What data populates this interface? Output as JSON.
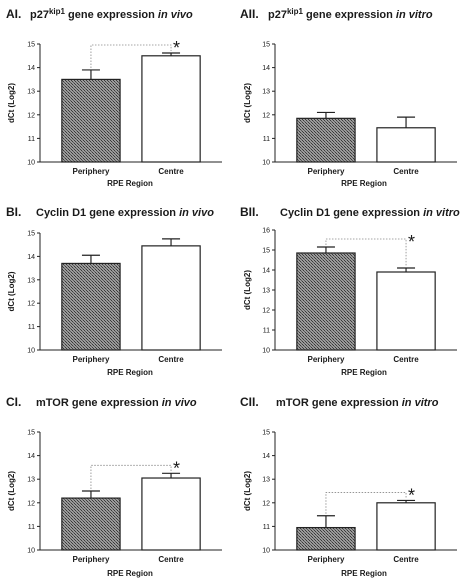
{
  "chart_data": [
    {
      "type": "bar",
      "panel": "AI.",
      "title": {
        "gene": "p27",
        "sup": "kip1",
        "middle": " gene expression ",
        "condition": "in vivo"
      },
      "ylabel": "dCt (Log2)",
      "xlabel": "RPE Region",
      "categories": [
        "Periphery",
        "Centre"
      ],
      "values": [
        13.5,
        14.5
      ],
      "errors": [
        0.4,
        0.12
      ],
      "ylim": [
        10,
        15
      ],
      "yticks": [
        "10",
        "11",
        "12",
        "13",
        "14",
        "15"
      ],
      "significance": "*"
    },
    {
      "type": "bar",
      "panel": "AII.",
      "title": {
        "gene": "p27",
        "sup": "kip1",
        "middle": " gene expression ",
        "condition": "in vitro"
      },
      "ylabel": "dCt (Log2)",
      "xlabel": "RPE Region",
      "categories": [
        "Periphery",
        "Centre"
      ],
      "values": [
        11.85,
        11.45
      ],
      "errors": [
        0.25,
        0.45
      ],
      "ylim": [
        10,
        15
      ],
      "yticks": [
        "10",
        "11",
        "12",
        "13",
        "14",
        "15"
      ],
      "significance": ""
    },
    {
      "type": "bar",
      "panel": "BI.",
      "title": {
        "gene": "Cyclin D1",
        "sup": "",
        "middle": " gene expression ",
        "condition": "in vivo"
      },
      "ylabel": "dCt (Log2)",
      "xlabel": "RPE Region",
      "categories": [
        "Periphery",
        "Centre"
      ],
      "values": [
        13.7,
        14.45
      ],
      "errors": [
        0.35,
        0.3
      ],
      "ylim": [
        10,
        15
      ],
      "yticks": [
        "10",
        "11",
        "12",
        "13",
        "14",
        "15"
      ],
      "significance": ""
    },
    {
      "type": "bar",
      "panel": "BII.",
      "title": {
        "gene": "Cyclin D1",
        "sup": "",
        "middle": " gene expression ",
        "condition": "in vitro"
      },
      "ylabel": "dCt (Log2)",
      "xlabel": "RPE Region",
      "categories": [
        "Periphery",
        "Centre"
      ],
      "values": [
        14.85,
        13.9
      ],
      "errors": [
        0.3,
        0.2
      ],
      "ylim": [
        10,
        16
      ],
      "yticks": [
        "10",
        "11",
        "12",
        "13",
        "14",
        "15",
        "16"
      ],
      "significance": "*"
    },
    {
      "type": "bar",
      "panel": "CI.",
      "title": {
        "gene": "mTOR",
        "sup": "",
        "middle": " gene expression ",
        "condition": "in vivo"
      },
      "ylabel": "dCt (Log2)",
      "xlabel": "RPE Region",
      "categories": [
        "Periphery",
        "Centre"
      ],
      "values": [
        12.2,
        13.05
      ],
      "errors": [
        0.3,
        0.2
      ],
      "ylim": [
        10,
        15
      ],
      "yticks": [
        "10",
        "11",
        "12",
        "13",
        "14",
        "15"
      ],
      "significance": "*"
    },
    {
      "type": "bar",
      "panel": "CII.",
      "title": {
        "gene": "mTOR",
        "sup": "",
        "middle": " gene expression ",
        "condition": "in vitro"
      },
      "ylabel": "dCt (Log2)",
      "xlabel": "RPE Region",
      "categories": [
        "Periphery",
        "Centre"
      ],
      "values": [
        10.95,
        12.0
      ],
      "errors": [
        0.5,
        0.1
      ],
      "ylim": [
        10,
        15
      ],
      "yticks": [
        "10",
        "11",
        "12",
        "13",
        "14",
        "15"
      ],
      "significance": "*"
    }
  ]
}
